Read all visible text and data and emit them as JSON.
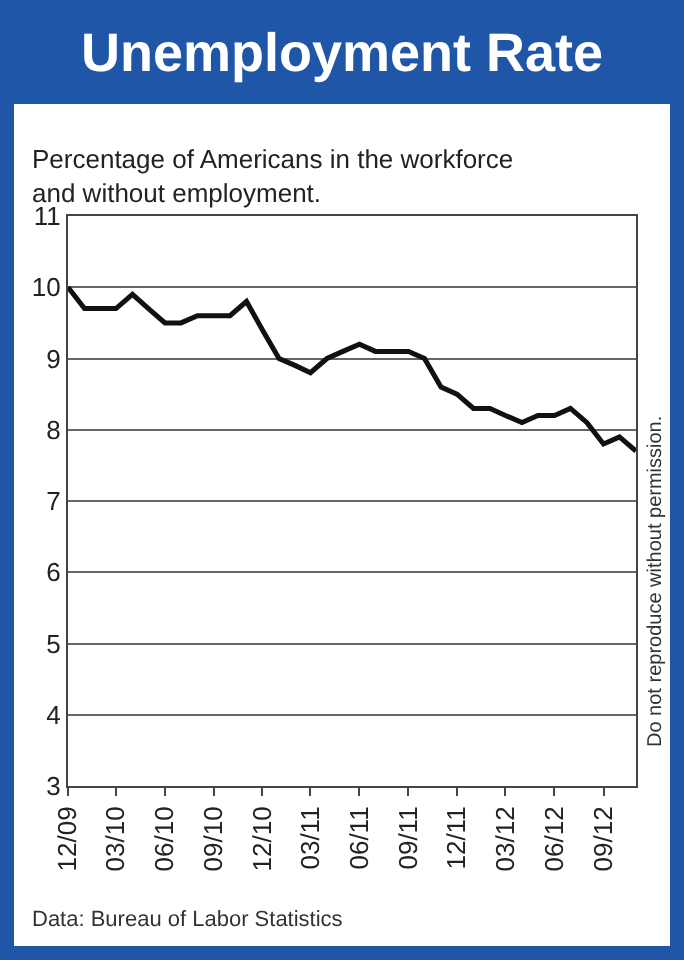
{
  "chart_data": {
    "type": "line",
    "title": "Unemployment Rate",
    "subtitle": "Percentage of Americans in the workforce and without employment.",
    "annotations": [
      "Data: Bureau of Labor Statistics",
      "Do not reproduce without permission."
    ],
    "x": [
      "2009-12",
      "2010-01",
      "2010-02",
      "2010-03",
      "2010-04",
      "2010-05",
      "2010-06",
      "2010-07",
      "2010-08",
      "2010-09",
      "2010-10",
      "2010-11",
      "2010-12",
      "2011-01",
      "2011-02",
      "2011-03",
      "2011-04",
      "2011-05",
      "2011-06",
      "2011-07",
      "2011-08",
      "2011-09",
      "2011-10",
      "2011-11",
      "2011-12",
      "2012-01",
      "2012-02",
      "2012-03",
      "2012-04",
      "2012-05",
      "2012-06",
      "2012-07",
      "2012-08",
      "2012-09",
      "2012-10",
      "2012-11"
    ],
    "series": [
      {
        "color": "#111111",
        "values": [
          10.0,
          9.7,
          9.7,
          9.7,
          9.9,
          9.7,
          9.5,
          9.5,
          9.6,
          9.6,
          9.6,
          9.8,
          9.4,
          9.0,
          8.9,
          8.8,
          9.0,
          9.1,
          9.2,
          9.1,
          9.1,
          9.1,
          9.0,
          8.6,
          8.5,
          8.3,
          8.3,
          8.2,
          8.1,
          8.2,
          8.2,
          8.3,
          8.1,
          7.8,
          7.9,
          7.7
        ]
      }
    ],
    "xlim": [
      "2009-12",
      "2012-11"
    ],
    "xticks": [
      {
        "value": "2009-12",
        "label": "12/09"
      },
      {
        "value": "2010-03",
        "label": "03/10"
      },
      {
        "value": "2010-06",
        "label": "06/10"
      },
      {
        "value": "2010-09",
        "label": "09/10"
      },
      {
        "value": "2010-12",
        "label": "12/10"
      },
      {
        "value": "2011-03",
        "label": "03/11"
      },
      {
        "value": "2011-06",
        "label": "06/11"
      },
      {
        "value": "2011-09",
        "label": "09/11"
      },
      {
        "value": "2011-12",
        "label": "12/11"
      },
      {
        "value": "2012-03",
        "label": "03/12"
      },
      {
        "value": "2012-06",
        "label": "06/12"
      },
      {
        "value": "2012-09",
        "label": "09/12"
      }
    ],
    "ylim": [
      3,
      11
    ],
    "yticks": [
      3,
      4,
      5,
      6,
      7,
      8,
      9,
      10,
      11
    ],
    "grid": "y",
    "legend": false,
    "marker": "none",
    "line_style": "solid"
  }
}
